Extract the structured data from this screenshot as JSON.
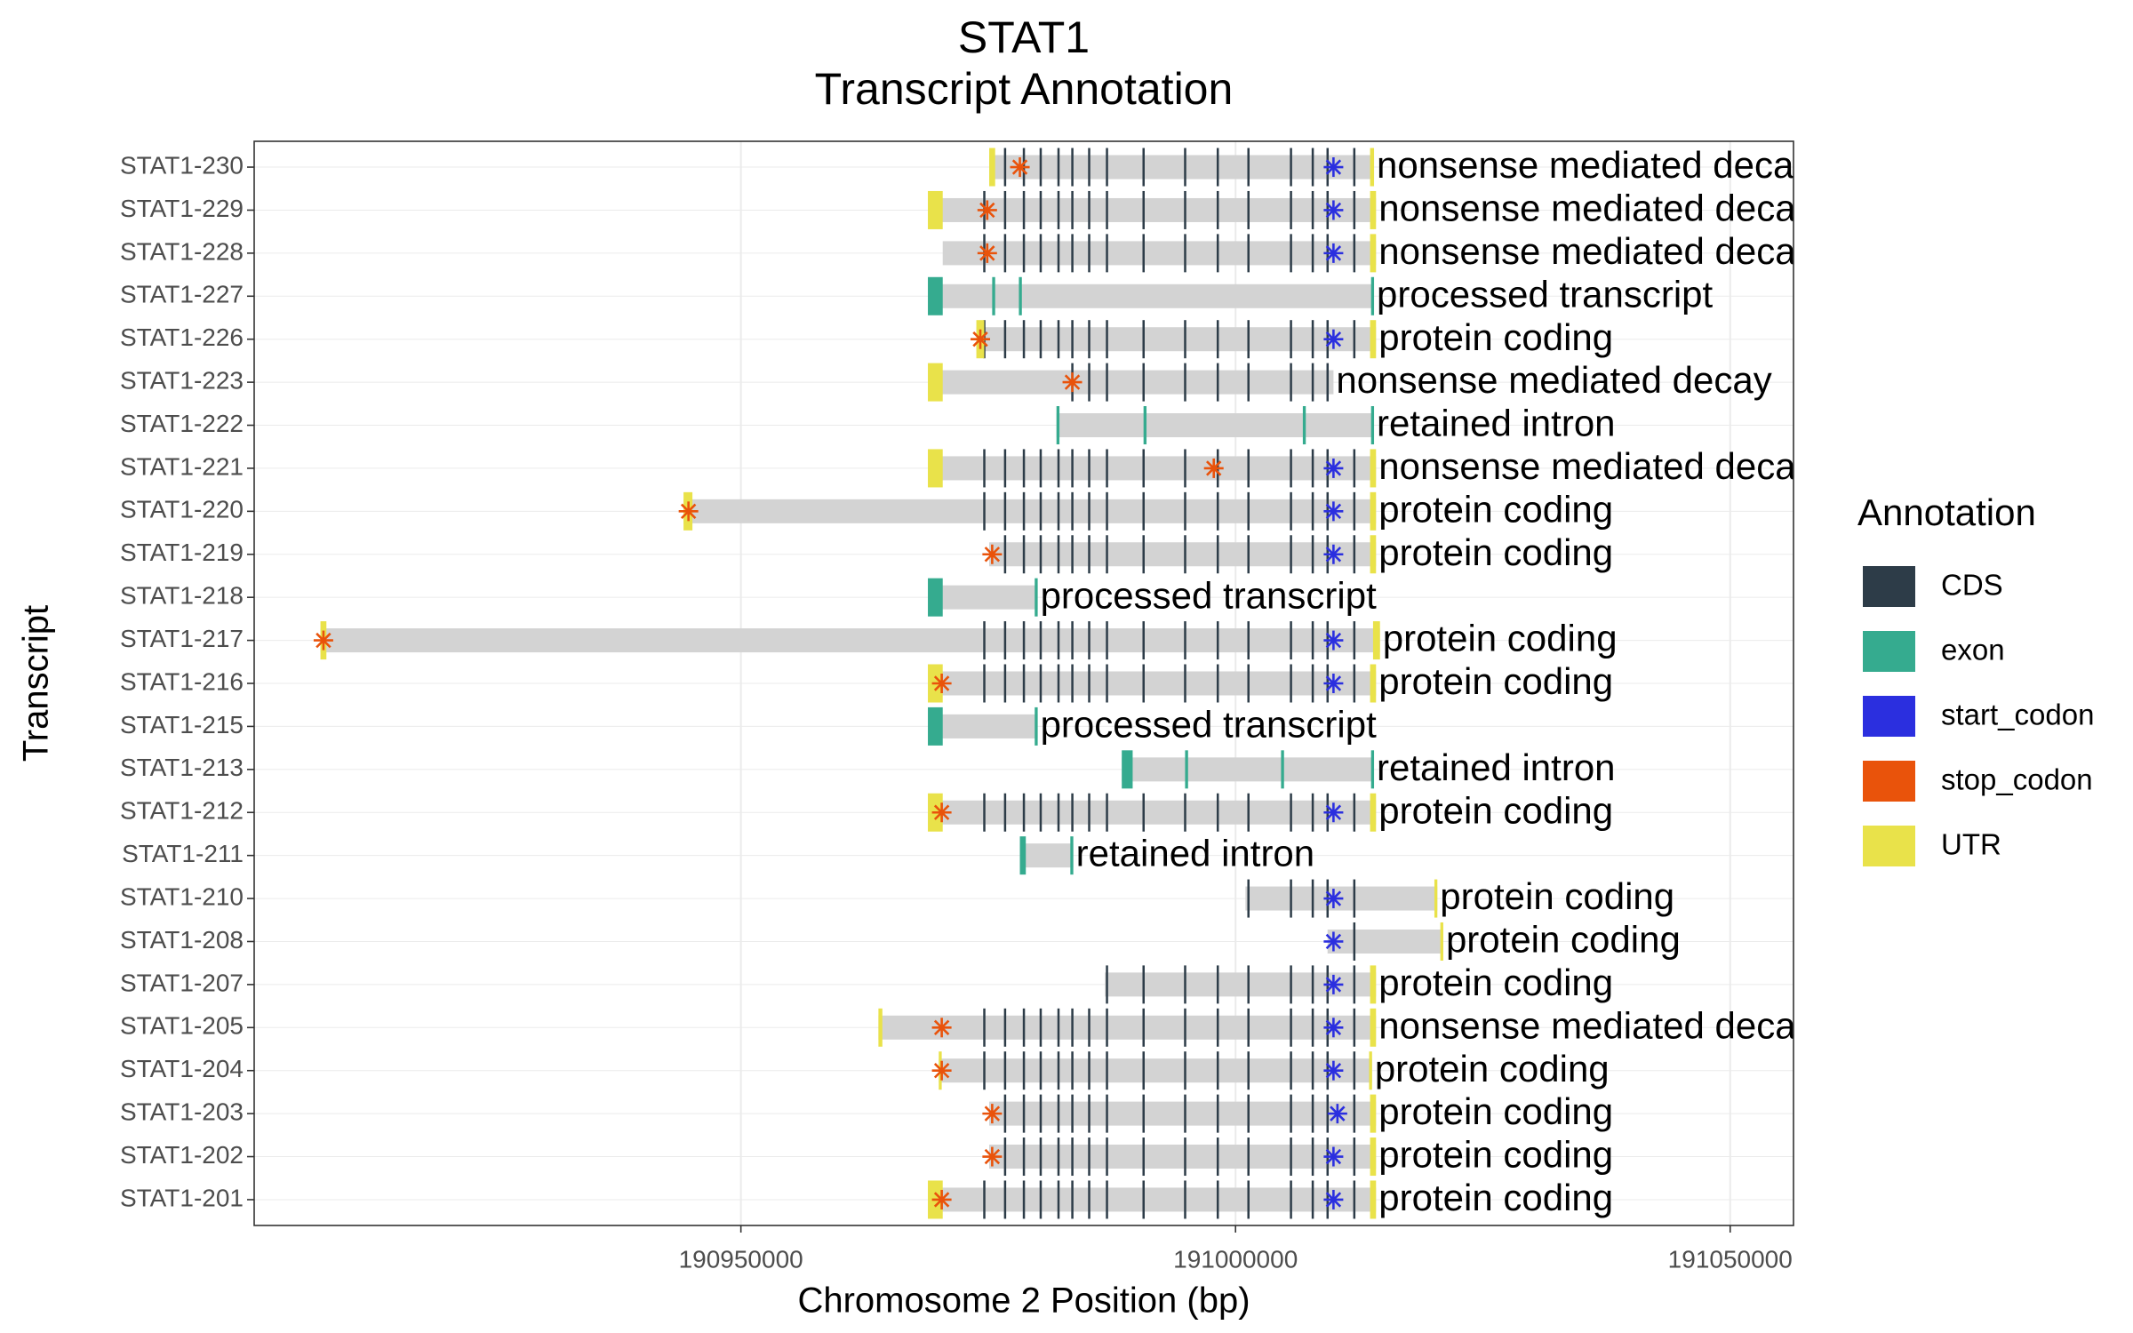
{
  "chart_data": {
    "type": "transcript",
    "title": "STAT1",
    "subtitle": "Transcript Annotation",
    "x_label": "Chromosome 2 Position (bp)",
    "y_label": "Transcript",
    "xlim": [
      190900800,
      191056400
    ],
    "xticks": [
      190950000,
      191000000,
      191050000
    ],
    "grid": true,
    "legend_title": "Annotation",
    "legend_position": "right",
    "bar_color": "#d3d3d3",
    "annotations": [
      {
        "name": "CDS",
        "color": "#2d3c48"
      },
      {
        "name": "exon",
        "color": "#35ab8f"
      },
      {
        "name": "start_codon",
        "color": "#2b2fdf"
      },
      {
        "name": "stop_codon",
        "color": "#e9530b"
      },
      {
        "name": "UTR",
        "color": "#e9e24a"
      }
    ],
    "transcripts": [
      {
        "name": "STAT1-230",
        "label": "nonsense mediated decay",
        "start": 190975100,
        "end": 191014000,
        "utr": [
          [
            190975100,
            190975700
          ],
          [
            191013600,
            191014000
          ]
        ],
        "cds": [
          190976700,
          190978600,
          190980300,
          190982100,
          190983500,
          190985200,
          190987000,
          190990700,
          190994900,
          190998200,
          191001300,
          191005600,
          191007800,
          191009300,
          191012000
        ],
        "stop_codon": 190978200,
        "start_codon": 191009900
      },
      {
        "name": "STAT1-229",
        "label": "nonsense mediated decay",
        "start": 190968900,
        "end": 191014200,
        "utr": [
          [
            190968900,
            190970400
          ],
          [
            191013600,
            191014200
          ]
        ],
        "cds": [
          190974600,
          190976700,
          190978600,
          190980300,
          190982100,
          190983500,
          190985200,
          190987000,
          190990700,
          190994900,
          190998200,
          191001300,
          191005600,
          191007800,
          191009300,
          191012000
        ],
        "stop_codon": 190974900,
        "start_codon": 191009900
      },
      {
        "name": "STAT1-228",
        "label": "nonsense mediated decay",
        "start": 190970400,
        "end": 191014200,
        "utr": [
          [
            191013600,
            191014200
          ]
        ],
        "cds": [
          190974600,
          190976700,
          190978600,
          190980300,
          190982100,
          190983500,
          190985200,
          190987000,
          190990700,
          190994900,
          190998200,
          191001300,
          191005600,
          191007800,
          191009300,
          191012000
        ],
        "stop_codon": 190974900,
        "start_codon": 191009900
      },
      {
        "name": "STAT1-227",
        "label": "processed transcript",
        "start": 190968900,
        "end": 191014000,
        "exon": [
          [
            190968900,
            190970400
          ],
          [
            190975400,
            190975700
          ],
          [
            190978100,
            190978400
          ],
          [
            191013700,
            191014000
          ]
        ]
      },
      {
        "name": "STAT1-226",
        "label": "protein coding",
        "start": 190973800,
        "end": 191014200,
        "utr": [
          [
            190973800,
            190974600
          ],
          [
            191013600,
            191014200
          ]
        ],
        "cds": [
          190974600,
          190976700,
          190978600,
          190980300,
          190982100,
          190983500,
          190985200,
          190987000,
          190990700,
          190994900,
          190998200,
          191001300,
          191005600,
          191007800,
          191009300,
          191012000
        ],
        "stop_codon": 190974200,
        "start_codon": 191009900
      },
      {
        "name": "STAT1-223",
        "label": "nonsense mediated decay",
        "start": 190968900,
        "end": 191009900,
        "utr": [
          [
            190968900,
            190970400
          ]
        ],
        "cds": [
          190983500,
          190985200,
          190987000,
          190990700,
          190994900,
          190998200,
          191001300,
          191005600,
          191007800,
          191009300
        ],
        "stop_codon": 190983500
      },
      {
        "name": "STAT1-222",
        "label": "retained intron",
        "start": 190981900,
        "end": 191014000,
        "exon": [
          [
            190981900,
            190982200
          ],
          [
            190990700,
            190991000
          ],
          [
            191006800,
            191007100
          ],
          [
            191013700,
            191014000
          ]
        ]
      },
      {
        "name": "STAT1-221",
        "label": "nonsense mediated decay",
        "start": 190968900,
        "end": 191014200,
        "utr": [
          [
            190968900,
            190970400
          ],
          [
            191013600,
            191014200
          ]
        ],
        "cds": [
          190974600,
          190976700,
          190978600,
          190980300,
          190982100,
          190983500,
          190985200,
          190987000,
          190990700,
          190994900,
          190998200,
          191001300,
          191005600,
          191007800,
          191009300,
          191012000
        ],
        "stop_codon": 190997800,
        "start_codon": 191009900
      },
      {
        "name": "STAT1-220",
        "label": "protein coding",
        "start": 190944200,
        "end": 191014200,
        "utr": [
          [
            190944200,
            190945100
          ],
          [
            191013600,
            191014200
          ]
        ],
        "cds": [
          190974600,
          190976700,
          190978600,
          190980300,
          190982100,
          190983500,
          190985200,
          190987000,
          190990700,
          190994900,
          190998200,
          191001300,
          191005600,
          191007800,
          191009300,
          191012000
        ],
        "stop_codon": 190944700,
        "start_codon": 191009900
      },
      {
        "name": "STAT1-219",
        "label": "protein coding",
        "start": 190975100,
        "end": 191014200,
        "utr": [
          [
            191013600,
            191014200
          ]
        ],
        "cds": [
          190976700,
          190978600,
          190980300,
          190982100,
          190983500,
          190985200,
          190987000,
          190990700,
          190994900,
          190998200,
          191001300,
          191005600,
          191007800,
          191009300,
          191012000
        ],
        "stop_codon": 190975400,
        "start_codon": 191009900
      },
      {
        "name": "STAT1-218",
        "label": "processed transcript",
        "start": 190968900,
        "end": 190980000,
        "exon": [
          [
            190968900,
            190970400
          ],
          [
            190979700,
            190980000
          ]
        ]
      },
      {
        "name": "STAT1-217",
        "label": "protein coding",
        "start": 190907500,
        "end": 191014600,
        "utr": [
          [
            190907500,
            190908100
          ],
          [
            191013900,
            191014600
          ]
        ],
        "cds": [
          190974600,
          190976700,
          190978600,
          190980300,
          190982100,
          190983500,
          190985200,
          190987000,
          190990700,
          190994900,
          190998200,
          191001300,
          191005600,
          191007800,
          191009300,
          191012000
        ],
        "stop_codon": 190907800,
        "start_codon": 191009900
      },
      {
        "name": "STAT1-216",
        "label": "protein coding",
        "start": 190968900,
        "end": 191014200,
        "utr": [
          [
            190968900,
            190970400
          ],
          [
            191013600,
            191014200
          ]
        ],
        "cds": [
          190974600,
          190976700,
          190978600,
          190980300,
          190982100,
          190983500,
          190985200,
          190987000,
          190990700,
          190994900,
          190998200,
          191001300,
          191005600,
          191007800,
          191009300,
          191012000
        ],
        "stop_codon": 190970300,
        "start_codon": 191009900
      },
      {
        "name": "STAT1-215",
        "label": "processed transcript",
        "start": 190968900,
        "end": 190980000,
        "exon": [
          [
            190968900,
            190970400
          ],
          [
            190979700,
            190980000
          ]
        ]
      },
      {
        "name": "STAT1-213",
        "label": "retained intron",
        "start": 190988500,
        "end": 191014000,
        "exon": [
          [
            190988500,
            190989600
          ],
          [
            190994900,
            190995200
          ],
          [
            191004600,
            191004900
          ],
          [
            191013700,
            191014000
          ]
        ]
      },
      {
        "name": "STAT1-212",
        "label": "protein coding",
        "start": 190968900,
        "end": 191014200,
        "utr": [
          [
            190968900,
            190970400
          ],
          [
            191013600,
            191014200
          ]
        ],
        "cds": [
          190974600,
          190976700,
          190978600,
          190980300,
          190982100,
          190983500,
          190985200,
          190987000,
          190990700,
          190994900,
          190998200,
          191001300,
          191005600,
          191007800,
          191009300,
          191012000
        ],
        "stop_codon": 190970300,
        "start_codon": 191009900
      },
      {
        "name": "STAT1-211",
        "label": "retained intron",
        "start": 190978200,
        "end": 190983600,
        "exon": [
          [
            190978200,
            190978800
          ],
          [
            190983300,
            190983600
          ]
        ]
      },
      {
        "name": "STAT1-210",
        "label": "protein coding",
        "start": 191001000,
        "end": 191020400,
        "utr": [
          [
            191020100,
            191020400
          ]
        ],
        "cds": [
          191001300,
          191005600,
          191007800,
          191009300,
          191012000
        ],
        "start_codon": 191009900
      },
      {
        "name": "STAT1-208",
        "label": "protein coding",
        "start": 191009300,
        "end": 191021000,
        "utr": [
          [
            191020700,
            191021000
          ]
        ],
        "cds": [
          191012000
        ],
        "start_codon": 191009900
      },
      {
        "name": "STAT1-207",
        "label": "protein coding",
        "start": 190986800,
        "end": 191014200,
        "utr": [
          [
            191013600,
            191014200
          ]
        ],
        "cds": [
          190987000,
          190990700,
          190994900,
          190998200,
          191001300,
          191005600,
          191007800,
          191009300,
          191012000
        ],
        "start_codon": 191009900
      },
      {
        "name": "STAT1-205",
        "label": "nonsense mediated decay",
        "start": 190963900,
        "end": 191014200,
        "utr": [
          [
            190963900,
            190964300
          ],
          [
            191013600,
            191014200
          ]
        ],
        "cds": [
          190974600,
          190976700,
          190978600,
          190980300,
          190982100,
          190983500,
          190985200,
          190987000,
          190990700,
          190994900,
          190998200,
          191001300,
          191005600,
          191007800,
          191009300,
          191012000
        ],
        "stop_codon": 190970300,
        "start_codon": 191009900
      },
      {
        "name": "STAT1-204",
        "label": "protein coding",
        "start": 190970000,
        "end": 191013800,
        "utr": [
          [
            190970000,
            190970300
          ],
          [
            191013500,
            191013800
          ]
        ],
        "cds": [
          190974600,
          190976700,
          190978600,
          190980300,
          190982100,
          190983500,
          190985200,
          190987000,
          190990700,
          190994900,
          190998200,
          191001300,
          191005600,
          191007800,
          191009300,
          191012000
        ],
        "stop_codon": 190970300,
        "start_codon": 191009900
      },
      {
        "name": "STAT1-203",
        "label": "protein coding",
        "start": 190975100,
        "end": 191014200,
        "utr": [
          [
            191013600,
            191014200
          ]
        ],
        "cds": [
          190976700,
          190978600,
          190980300,
          190982100,
          190983500,
          190985200,
          190987000,
          190990700,
          190994900,
          190998200,
          191001300,
          191005600,
          191007800,
          191009300,
          191012000
        ],
        "stop_codon": 190975400,
        "start_codon": 191010300
      },
      {
        "name": "STAT1-202",
        "label": "protein coding",
        "start": 190975100,
        "end": 191014200,
        "utr": [
          [
            191013600,
            191014200
          ]
        ],
        "cds": [
          190976700,
          190978600,
          190980300,
          190982100,
          190983500,
          190985200,
          190987000,
          190990700,
          190994900,
          190998200,
          191001300,
          191005600,
          191007800,
          191009300,
          191012000
        ],
        "stop_codon": 190975400,
        "start_codon": 191009900
      },
      {
        "name": "STAT1-201",
        "label": "protein coding",
        "start": 190968900,
        "end": 191014200,
        "utr": [
          [
            190968900,
            190970400
          ],
          [
            191013600,
            191014200
          ]
        ],
        "cds": [
          190974600,
          190976700,
          190978600,
          190980300,
          190982100,
          190983500,
          190985200,
          190987000,
          190990700,
          190994900,
          190998200,
          191001300,
          191005600,
          191007800,
          191009300,
          191012000
        ],
        "stop_codon": 190970300,
        "start_codon": 191009900
      }
    ]
  }
}
